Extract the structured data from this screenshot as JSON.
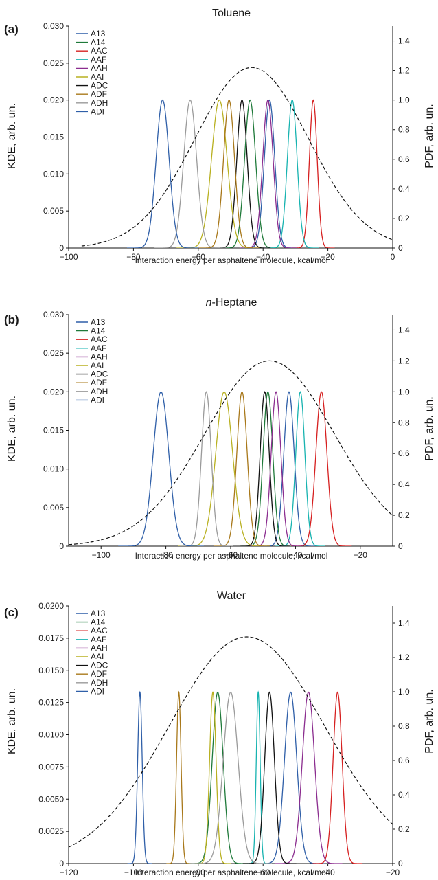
{
  "colors": {
    "A13": "#2f5fa8",
    "A14": "#1f7a3a",
    "AAC": "#d62020",
    "AAF": "#17b3b0",
    "AAH": "#8b2d8f",
    "AAI": "#b8b020",
    "ADC": "#111111",
    "ADF": "#a8781a",
    "ADH": "#9a9a9a",
    "ADI": "#2f5fa8",
    "pdf": "#111111"
  },
  "chart_data": [
    {
      "type": "line",
      "letter": "(a)",
      "title": "Toluene",
      "title_italic_prefix": "",
      "xlabel": "Interaction energy per asphaltene molecule, kcal/mol",
      "ylabel_left": "KDE, arb. un.",
      "ylabel_right": "PDF, arb. un.",
      "xlim": [
        -100,
        0
      ],
      "xticks": [
        -100,
        -80,
        -60,
        -40,
        -20,
        0
      ],
      "xtick_labels": [
        "−100",
        "−80",
        "−60",
        "−40",
        "−20",
        "0"
      ],
      "ylim_left": [
        0,
        0.03
      ],
      "yticks_left": [
        "0",
        "0.005",
        "0.010",
        "0.015",
        "0.020",
        "0.025",
        "0.030"
      ],
      "ylim_right": [
        0,
        1.5
      ],
      "yticks_right": [
        "0",
        "0.2",
        "0.4",
        "0.6",
        "0.8",
        "1.0",
        "1.2",
        "1.4"
      ],
      "legend": [
        "A13",
        "A14",
        "AAC",
        "AAF",
        "AAH",
        "AAI",
        "ADC",
        "ADF",
        "ADH",
        "ADI"
      ],
      "legend_position": "top-left",
      "series": [
        {
          "name": "A13",
          "peak_x": -38.0,
          "peak_y": 0.02,
          "sigma": 1.6
        },
        {
          "name": "A14",
          "peak_x": -44.0,
          "peak_y": 0.02,
          "sigma": 1.7
        },
        {
          "name": "AAC",
          "peak_x": -24.5,
          "peak_y": 0.02,
          "sigma": 1.2
        },
        {
          "name": "AAF",
          "peak_x": -31.0,
          "peak_y": 0.02,
          "sigma": 1.5
        },
        {
          "name": "AAH",
          "peak_x": -38.5,
          "peak_y": 0.02,
          "sigma": 1.6
        },
        {
          "name": "AAI",
          "peak_x": -53.5,
          "peak_y": 0.02,
          "sigma": 2.4
        },
        {
          "name": "ADC",
          "peak_x": -46.5,
          "peak_y": 0.02,
          "sigma": 1.6
        },
        {
          "name": "ADF",
          "peak_x": -50.5,
          "peak_y": 0.02,
          "sigma": 1.7
        },
        {
          "name": "ADH",
          "peak_x": -62.5,
          "peak_y": 0.02,
          "sigma": 2.0
        },
        {
          "name": "ADI",
          "peak_x": -71.0,
          "peak_y": 0.02,
          "sigma": 2.0
        }
      ],
      "pdf": {
        "mean": -43.5,
        "peak": 1.22,
        "sigma": 17.5,
        "x_range": [
          -96,
          0
        ]
      }
    },
    {
      "type": "line",
      "letter": "(b)",
      "title": "-Heptane",
      "title_italic_prefix": "n",
      "xlabel": "Interaction energy per asphaltene molecule, kcal/mol",
      "ylabel_left": "KDE, arb. un.",
      "ylabel_right": "PDF, arb. un.",
      "xlim": [
        -110,
        -10
      ],
      "xticks": [
        -100,
        -80,
        -60,
        -40,
        -20
      ],
      "xtick_labels": [
        "−100",
        "−80",
        "−60",
        "−40",
        "−20"
      ],
      "ylim_left": [
        0,
        0.03
      ],
      "yticks_left": [
        "0",
        "0.005",
        "0.010",
        "0.015",
        "0.020",
        "0.025",
        "0.030"
      ],
      "ylim_right": [
        0,
        1.5
      ],
      "yticks_right": [
        "0",
        "0.2",
        "0.4",
        "0.6",
        "0.8",
        "1.0",
        "1.2",
        "1.4"
      ],
      "legend": [
        "A13",
        "A14",
        "AAC",
        "AAF",
        "AAH",
        "AAI",
        "ADC",
        "ADF",
        "ADH",
        "ADI"
      ],
      "legend_position": "top-left",
      "series": [
        {
          "name": "A13",
          "peak_x": -42.0,
          "peak_y": 0.02,
          "sigma": 1.6
        },
        {
          "name": "A14",
          "peak_x": -48.5,
          "peak_y": 0.02,
          "sigma": 1.5
        },
        {
          "name": "AAC",
          "peak_x": -32.0,
          "peak_y": 0.02,
          "sigma": 1.7
        },
        {
          "name": "AAF",
          "peak_x": -38.5,
          "peak_y": 0.02,
          "sigma": 1.4
        },
        {
          "name": "AAH",
          "peak_x": -46.0,
          "peak_y": 0.02,
          "sigma": 1.5
        },
        {
          "name": "AAI",
          "peak_x": -62.0,
          "peak_y": 0.02,
          "sigma": 2.6
        },
        {
          "name": "ADC",
          "peak_x": -49.5,
          "peak_y": 0.02,
          "sigma": 1.4
        },
        {
          "name": "ADF",
          "peak_x": -56.5,
          "peak_y": 0.02,
          "sigma": 1.6
        },
        {
          "name": "ADH",
          "peak_x": -67.5,
          "peak_y": 0.02,
          "sigma": 1.5
        },
        {
          "name": "ADI",
          "peak_x": -81.5,
          "peak_y": 0.02,
          "sigma": 2.4
        }
      ],
      "pdf": {
        "mean": -48.0,
        "peak": 1.2,
        "sigma": 20.0,
        "x_range": [
          -110,
          -10
        ]
      }
    },
    {
      "type": "line",
      "letter": "(c)",
      "title": "Water",
      "title_italic_prefix": "",
      "xlabel": "Interaction energy per asphaltene molecule, kcal/mol",
      "ylabel_left": "KDE, arb. un.",
      "ylabel_right": "PDF, arb. un.",
      "xlim": [
        -120,
        -20
      ],
      "xticks": [
        -120,
        -100,
        -80,
        -60,
        -40,
        -20
      ],
      "xtick_labels": [
        "−120",
        "−100",
        "−80",
        "−60",
        "−40",
        "−20"
      ],
      "ylim_left": [
        0,
        0.02
      ],
      "yticks_left": [
        "0",
        "0.0025",
        "0.0050",
        "0.0075",
        "0.0100",
        "0.0125",
        "0.0150",
        "0.0175",
        "0.0200"
      ],
      "ylim_right": [
        0,
        1.5
      ],
      "yticks_right": [
        "0",
        "0.2",
        "0.4",
        "0.6",
        "0.8",
        "1.0",
        "1.2",
        "1.4"
      ],
      "legend": [
        "A13",
        "A14",
        "AAC",
        "AAF",
        "AAH",
        "AAI",
        "ADC",
        "ADF",
        "ADH",
        "ADI"
      ],
      "legend_position": "top-left",
      "series": [
        {
          "name": "A13",
          "peak_x": -51.5,
          "peak_y": 0.0133,
          "sigma": 1.9
        },
        {
          "name": "A14",
          "peak_x": -74.0,
          "peak_y": 0.0133,
          "sigma": 1.7
        },
        {
          "name": "AAC",
          "peak_x": -37.0,
          "peak_y": 0.0133,
          "sigma": 1.4
        },
        {
          "name": "AAF",
          "peak_x": -61.5,
          "peak_y": 0.0133,
          "sigma": 0.6
        },
        {
          "name": "AAH",
          "peak_x": -46.0,
          "peak_y": 0.0133,
          "sigma": 1.9
        },
        {
          "name": "AAI",
          "peak_x": -75.5,
          "peak_y": 0.0133,
          "sigma": 1.0
        },
        {
          "name": "ADC",
          "peak_x": -58.0,
          "peak_y": 0.0133,
          "sigma": 1.5
        },
        {
          "name": "ADF",
          "peak_x": -86.0,
          "peak_y": 0.0133,
          "sigma": 0.7
        },
        {
          "name": "ADH",
          "peak_x": -70.0,
          "peak_y": 0.0133,
          "sigma": 2.3
        },
        {
          "name": "ADI",
          "peak_x": -98.0,
          "peak_y": 0.0133,
          "sigma": 0.7
        }
      ],
      "pdf": {
        "mean": -65.0,
        "peak": 1.32,
        "sigma": 24.0,
        "x_range": [
          -120,
          -20
        ]
      }
    }
  ]
}
